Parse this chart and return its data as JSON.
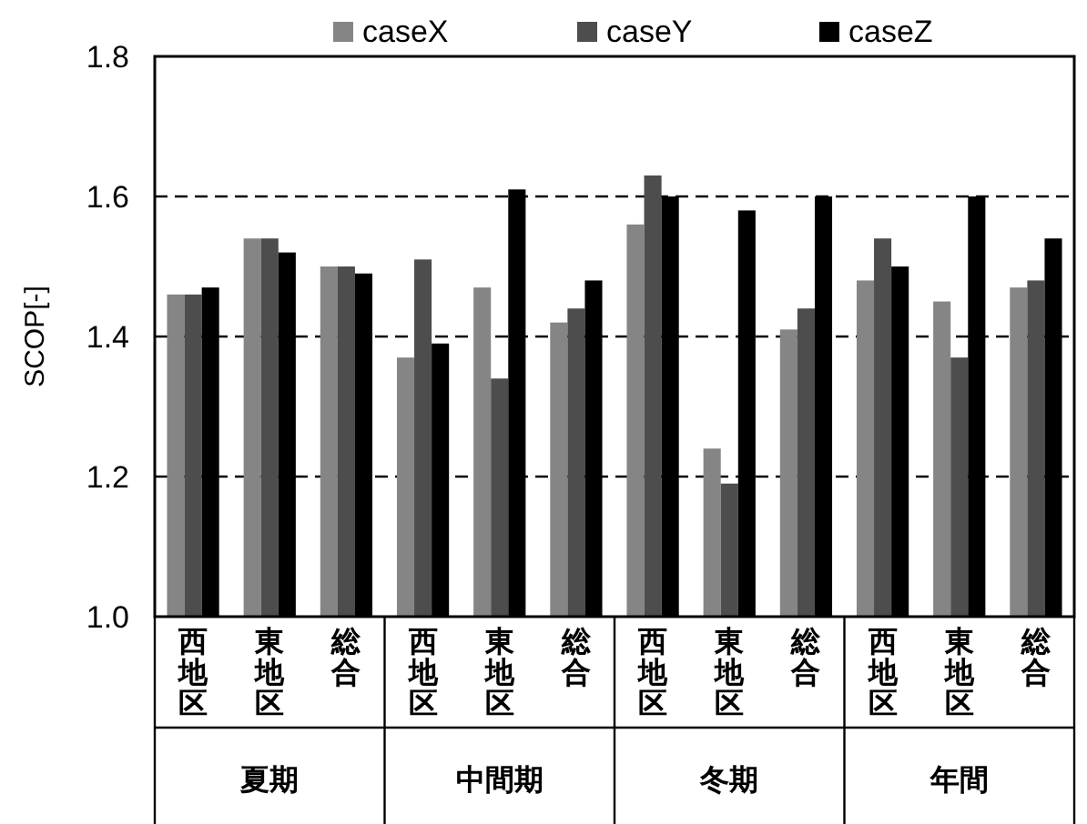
{
  "chart_data": {
    "type": "bar",
    "ylabel": "SCOP[-]",
    "categories": [
      "西地区",
      "東地区",
      "総合",
      "西地区",
      "東地区",
      "総合",
      "西地区",
      "東地区",
      "総合",
      "西地区",
      "東地区",
      "総合"
    ],
    "series": [
      {
        "name": "caseX",
        "color": "#858585",
        "values": [
          1.46,
          1.54,
          1.5,
          1.37,
          1.47,
          1.42,
          1.56,
          1.24,
          1.41,
          1.48,
          1.45,
          1.47
        ]
      },
      {
        "name": "caseY",
        "color": "#4d4d4d",
        "values": [
          1.46,
          1.54,
          1.5,
          1.51,
          1.34,
          1.44,
          1.63,
          1.19,
          1.44,
          1.54,
          1.37,
          1.48
        ]
      },
      {
        "name": "caseZ",
        "color": "#000000",
        "values": [
          1.47,
          1.52,
          1.49,
          1.39,
          1.61,
          1.48,
          1.6,
          1.58,
          1.6,
          1.5,
          1.6,
          1.54
        ]
      }
    ],
    "ylim": [
      1.0,
      1.8
    ],
    "yticks": [
      {
        "value": 1.0,
        "label": "1.0"
      },
      {
        "value": 1.2,
        "label": "1.2"
      },
      {
        "value": 1.4,
        "label": "1.4"
      },
      {
        "value": 1.6,
        "label": "1.6"
      },
      {
        "value": 1.8,
        "label": "1.8"
      }
    ],
    "grid": "y",
    "legend": "top",
    "annotations": [
      "夏期",
      "中間期",
      "冬期",
      "年間"
    ]
  }
}
